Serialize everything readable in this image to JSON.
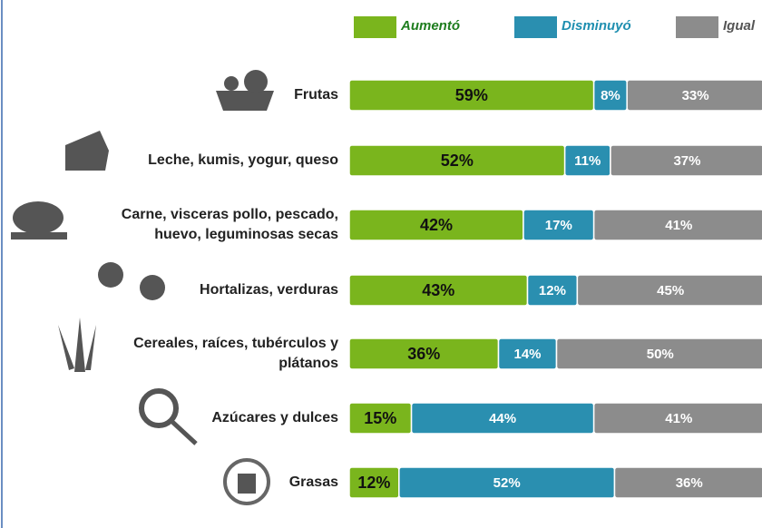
{
  "chart_data": {
    "type": "stacked-bar-horizontal",
    "categories": [
      [
        "Frutas"
      ],
      [
        "Leche, kumis, yogur, queso"
      ],
      [
        "Carne, visceras pollo, pescado,",
        "huevo, leguminosas secas"
      ],
      [
        "Hortalizas, verduras"
      ],
      [
        "Cereales, raíces, tubérculos y",
        "plátanos"
      ],
      [
        "Azúcares y dulces"
      ],
      [
        "Grasas"
      ]
    ],
    "series": [
      {
        "name": "Aumentó",
        "color": "#7ab51d",
        "values": [
          59,
          52,
          42,
          43,
          36,
          15,
          12
        ],
        "value_labels": [
          "59%",
          "52%",
          "42%",
          "43%",
          "36%",
          "15%",
          "12%"
        ]
      },
      {
        "name": "Disminuyó",
        "color": "#2a8fb0",
        "values": [
          8,
          11,
          17,
          12,
          14,
          44,
          52
        ],
        "value_labels": [
          "8%",
          "11%",
          "17%",
          "12%",
          "14%",
          "44%",
          "52%"
        ]
      },
      {
        "name": "Igual",
        "color": "#8c8c8c",
        "values": [
          33,
          37,
          41,
          45,
          50,
          41,
          36
        ],
        "value_labels": [
          "33%",
          "37%",
          "41%",
          "45%",
          "50%",
          "41%",
          "36%"
        ]
      }
    ],
    "xlim": [
      0,
      100
    ]
  }
}
